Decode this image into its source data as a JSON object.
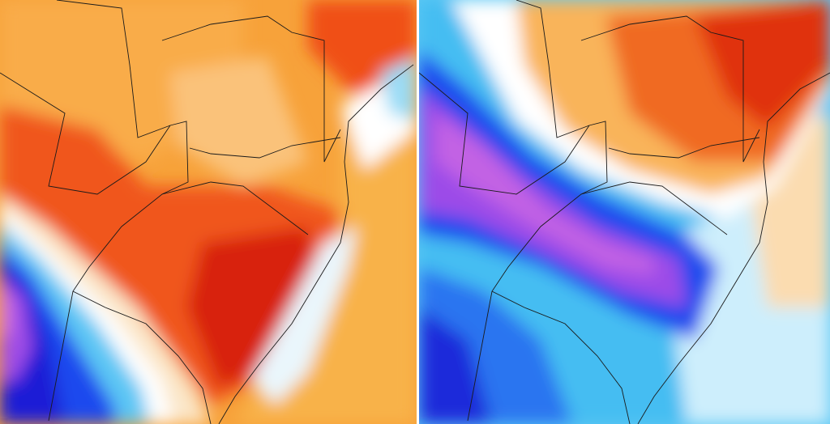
{
  "panels": [
    {
      "id": "left-map",
      "kind": "temperature-anomaly-map"
    },
    {
      "id": "right-map",
      "kind": "temperature-anomaly-map"
    }
  ],
  "palette": {
    "dark_red": "#d41a08",
    "red": "#ee4a10",
    "orange": "#f7902a",
    "light_orange": "#f9b448",
    "pale": "#fbe3c0",
    "white": "#ffffff",
    "light_blue": "#7fd4f6",
    "cyan": "#29b6f2",
    "blue": "#1e58f0",
    "deep_blue": "#1a1fd8",
    "purple": "#9c4ce8",
    "pink": "#d070e6",
    "border_line": "#1a1a1a"
  }
}
